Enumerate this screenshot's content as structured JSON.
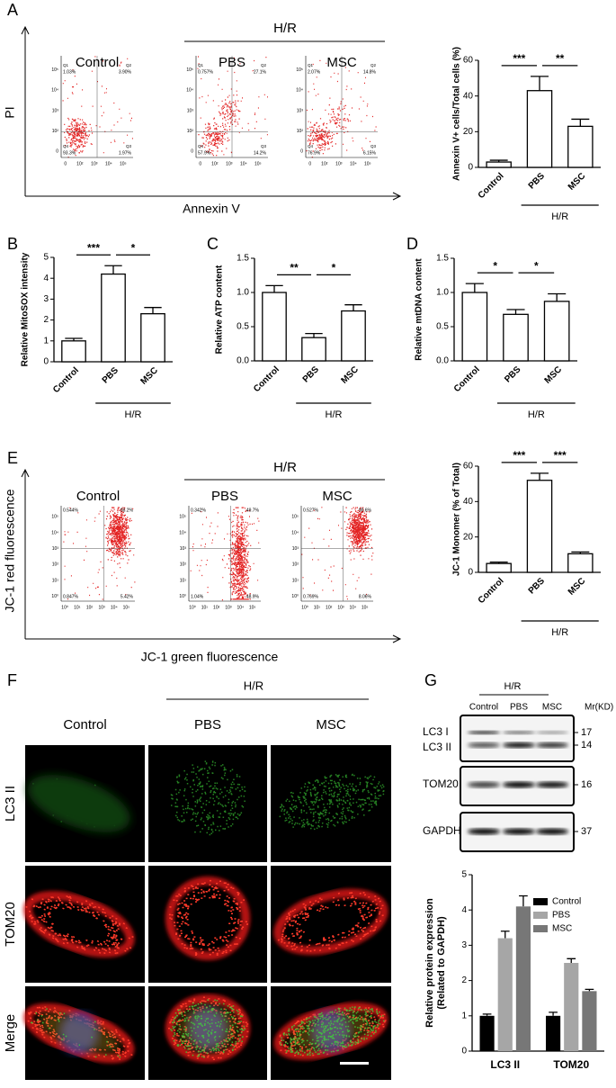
{
  "panel_labels": [
    "A",
    "B",
    "C",
    "D",
    "E",
    "F",
    "G"
  ],
  "flow_panels": [
    {
      "title": "H/R",
      "xlabel": "Annexin V",
      "ylabel": "PI",
      "axis_ticks": [
        "0",
        "10²",
        "10³",
        "10⁴",
        "10⁵"
      ],
      "quadrant_names": [
        "Q1",
        "Q2",
        "Q4",
        "Q3"
      ],
      "plots": [
        {
          "name": "Control",
          "quadrants": [
            "1.03%",
            "3.90%",
            "93.3%",
            "1.97%"
          ]
        },
        {
          "name": "PBS",
          "quadrants": [
            "0.757%",
            "27.1%",
            "57.9%",
            "14.2%"
          ]
        },
        {
          "name": "MSC",
          "quadrants": [
            "2.07%",
            "14.8%",
            "76.9%",
            "6.15%"
          ]
        }
      ]
    },
    {
      "title": "H/R",
      "xlabel": "JC-1 green fluorescence",
      "ylabel": "JC-1 red fluorescence",
      "axis_ticks": [
        "10⁰",
        "10¹",
        "10²",
        "10³",
        "10⁴",
        "10⁵"
      ],
      "plots": [
        {
          "name": "Control",
          "quadrants": [
            "0.544%",
            "93.2%",
            "0.847%",
            "5.42%"
          ]
        },
        {
          "name": "PBS",
          "quadrants": [
            "0.342%",
            "49.7%",
            "1.04%",
            "48.9%"
          ]
        },
        {
          "name": "MSC",
          "quadrants": [
            "0.527%",
            "90.6%",
            "0.769%",
            "8.06%"
          ]
        }
      ]
    }
  ],
  "chart_data": [
    {
      "type": "bar",
      "ylabel": "Annexin V+ cells/Total cells (%)",
      "categories": [
        "Control",
        "PBS",
        "MSC"
      ],
      "values": [
        3,
        43,
        23
      ],
      "errors": [
        1,
        8,
        4
      ],
      "ylim": [
        0,
        60
      ],
      "yticks": [
        0,
        20,
        40,
        60
      ],
      "significance": [
        "***",
        "**"
      ],
      "group_label": "H/R",
      "color": "#ffffff"
    },
    {
      "type": "bar",
      "ylabel": "Relative MitoSOX intensity",
      "categories": [
        "Control",
        "PBS",
        "MSC"
      ],
      "values": [
        1,
        4.2,
        2.3
      ],
      "errors": [
        0.12,
        0.4,
        0.3
      ],
      "ylim": [
        0,
        5
      ],
      "yticks": [
        0,
        1,
        2,
        3,
        4,
        5
      ],
      "significance": [
        "***",
        "*"
      ],
      "group_label": "H/R",
      "color": "#ffffff"
    },
    {
      "type": "bar",
      "ylabel": "Relative ATP content",
      "categories": [
        "Control",
        "PBS",
        "MSC"
      ],
      "values": [
        1.0,
        0.34,
        0.73
      ],
      "errors": [
        0.1,
        0.06,
        0.09
      ],
      "ylim": [
        0,
        1.5
      ],
      "yticks": [
        {
          "value": 0,
          "label": "0.0"
        },
        0.5,
        {
          "value": 1,
          "label": "1.0"
        },
        1.5
      ],
      "significance": [
        "**",
        "*"
      ],
      "group_label": "H/R",
      "color": "#ffffff"
    },
    {
      "type": "bar",
      "ylabel": "Relative mtDNA content",
      "categories": [
        "Control",
        "PBS",
        "MSC"
      ],
      "values": [
        1.0,
        0.68,
        0.87
      ],
      "errors": [
        0.13,
        0.07,
        0.11
      ],
      "ylim": [
        0,
        1.5
      ],
      "yticks": [
        {
          "value": 0,
          "label": "0.0"
        },
        0.5,
        {
          "value": 1,
          "label": "1.0"
        },
        1.5
      ],
      "significance": [
        "*",
        "*"
      ],
      "group_label": "H/R",
      "color": "#ffffff"
    },
    {
      "type": "bar",
      "ylabel": "JC-1 Monomer (% of Total)",
      "categories": [
        "Control",
        "PBS",
        "MSC"
      ],
      "values": [
        5,
        52,
        10.5
      ],
      "errors": [
        0.8,
        4,
        1
      ],
      "ylim": [
        0,
        60
      ],
      "yticks": [
        0,
        20,
        40,
        60
      ],
      "significance": [
        "***",
        "***"
      ],
      "group_label": "H/R",
      "color": "#ffffff"
    },
    {
      "type": "grouped_bar",
      "ylabel": [
        "Relative protein expression",
        "(Related to GAPDH)"
      ],
      "categories": [
        "LC3 II",
        "TOM20"
      ],
      "ylim": [
        0,
        5
      ],
      "yticks": [
        0,
        1,
        2,
        3,
        4,
        5
      ],
      "series": [
        {
          "name": "Control",
          "color": "#000000",
          "values": [
            1.0,
            1.0
          ],
          "errors": [
            0.05,
            0.1
          ]
        },
        {
          "name": "PBS",
          "color": "#a6a6a6",
          "values": [
            3.2,
            2.5
          ],
          "errors": [
            0.2,
            0.12
          ]
        },
        {
          "name": "MSC",
          "color": "#777777",
          "values": [
            4.1,
            1.7
          ],
          "errors": [
            0.3,
            0.05
          ]
        }
      ]
    }
  ],
  "microscopy": {
    "group_label": "H/R",
    "columns": [
      "Control",
      "PBS",
      "MSC"
    ],
    "rows": [
      "LC3 II",
      "TOM20",
      "Merge"
    ]
  },
  "blot": {
    "group_label": "H/R",
    "lanes": [
      "Control",
      "PBS",
      "MSC"
    ],
    "mr_label": "Mr(KD)",
    "rows": [
      "LC3 I",
      "LC3 II",
      "TOM20",
      "GAPDH"
    ],
    "markers": [
      "17",
      "14",
      "16",
      "37"
    ]
  }
}
